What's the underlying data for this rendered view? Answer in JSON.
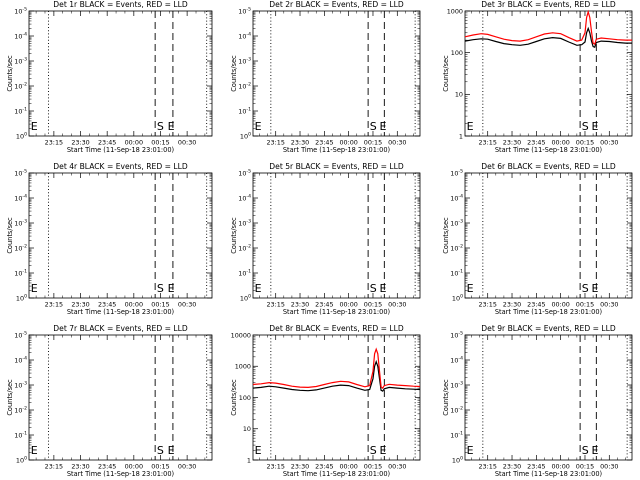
{
  "figure": {
    "background": "#ffffff",
    "axis_color": "#000000",
    "events_color": "#000000",
    "lld_color": "#ff0000"
  },
  "chart_data": [
    {
      "type": "line",
      "panel": 1,
      "title": "Det 1r BLACK = Events, RED = LLD",
      "xlabel": "Start Time (11-Sep-18 23:01:00)",
      "ylabel": "Counts/sec",
      "y_scale": "log",
      "ylim": [
        1,
        100000
      ],
      "xlim": [
        "23:01",
        "00:44"
      ],
      "x_ticks": [
        "23:15",
        "23:30",
        "23:45",
        "00:00",
        "00:15",
        "00:30"
      ],
      "y_tick_labels": [
        "10^0",
        "10^-1",
        "10^-2",
        "10^-3",
        "10^-4",
        "10^-5"
      ],
      "vlines_dotted": [
        "23:12",
        "00:41"
      ],
      "vlines_dashed": [
        "00:12",
        "00:22"
      ],
      "markers": [
        {
          "text": "E",
          "x": "23:02"
        },
        {
          "text": "S",
          "x": "00:13"
        },
        {
          "text": "E",
          "x": "00:19"
        }
      ],
      "series": []
    },
    {
      "type": "line",
      "panel": 2,
      "title": "Det 2r BLACK = Events, RED = LLD",
      "xlabel": "Start Time (11-Sep-18 23:01:00)",
      "ylabel": "Counts/sec",
      "y_scale": "log",
      "ylim": [
        1,
        100000
      ],
      "xlim": [
        "23:01",
        "00:44"
      ],
      "x_ticks": [
        "23:15",
        "23:30",
        "23:45",
        "00:00",
        "00:15",
        "00:30"
      ],
      "y_tick_labels": [
        "10^0",
        "10^-1",
        "10^-2",
        "10^-3",
        "10^-4",
        "10^-5"
      ],
      "vlines_dotted": [
        "23:12",
        "00:41"
      ],
      "vlines_dashed": [
        "00:12",
        "00:22"
      ],
      "markers": [
        {
          "text": "E",
          "x": "23:02"
        },
        {
          "text": "S",
          "x": "00:13"
        },
        {
          "text": "E",
          "x": "00:19"
        }
      ],
      "series": []
    },
    {
      "type": "line",
      "panel": 3,
      "title": "Det 3r BLACK = Events, RED = LLD",
      "xlabel": "Start Time (11-Sep-18 23:01:00)",
      "ylabel": "Counts/sec",
      "y_scale": "log",
      "ylim": [
        1,
        1000
      ],
      "xlim": [
        "23:01",
        "00:44"
      ],
      "x_ticks": [
        "23:15",
        "23:30",
        "23:45",
        "00:00",
        "00:15",
        "00:30"
      ],
      "y_tick_labels": [
        "1",
        "10",
        "100",
        "1000"
      ],
      "vlines_dotted": [
        "23:12",
        "00:41"
      ],
      "vlines_dashed": [
        "00:12",
        "00:22"
      ],
      "markers": [
        {
          "text": "E",
          "x": "23:02"
        },
        {
          "text": "S",
          "x": "00:13"
        },
        {
          "text": "E",
          "x": "00:19"
        }
      ],
      "series": [
        {
          "name": "Events",
          "x": [
            "23:01",
            "23:06",
            "23:11",
            "23:15",
            "23:20",
            "23:25",
            "23:30",
            "23:35",
            "23:40",
            "23:45",
            "23:50",
            "23:55",
            "00:00",
            "00:05",
            "00:10",
            "00:13",
            "00:15",
            "00:16",
            "00:17",
            "00:18",
            "00:19",
            "00:20",
            "00:21",
            "00:22",
            "00:25",
            "00:30",
            "00:35",
            "00:40",
            "00:44"
          ],
          "y": [
            190,
            205,
            215,
            210,
            185,
            165,
            155,
            150,
            160,
            185,
            215,
            230,
            220,
            180,
            150,
            155,
            180,
            300,
            380,
            300,
            190,
            140,
            135,
            175,
            190,
            185,
            175,
            170,
            170
          ]
        },
        {
          "name": "LLD",
          "x": [
            "23:01",
            "23:06",
            "23:11",
            "23:15",
            "23:20",
            "23:25",
            "23:30",
            "23:35",
            "23:40",
            "23:45",
            "23:50",
            "23:55",
            "00:00",
            "00:05",
            "00:10",
            "00:13",
            "00:15",
            "00:16",
            "00:17",
            "00:18",
            "00:19",
            "00:20",
            "00:21",
            "00:22",
            "00:25",
            "00:30",
            "00:35",
            "00:40",
            "00:44"
          ],
          "y": [
            240,
            265,
            285,
            275,
            240,
            210,
            195,
            190,
            205,
            240,
            280,
            300,
            285,
            230,
            190,
            200,
            300,
            700,
            950,
            700,
            320,
            170,
            160,
            210,
            225,
            215,
            205,
            200,
            200
          ]
        }
      ]
    },
    {
      "type": "line",
      "panel": 4,
      "title": "Det 4r BLACK = Events, RED = LLD",
      "xlabel": "Start Time (11-Sep-18 23:01:00)",
      "ylabel": "Counts/sec",
      "y_scale": "log",
      "ylim": [
        1,
        100000
      ],
      "xlim": [
        "23:01",
        "00:44"
      ],
      "x_ticks": [
        "23:15",
        "23:30",
        "23:45",
        "00:00",
        "00:15",
        "00:30"
      ],
      "y_tick_labels": [
        "10^0",
        "10^-1",
        "10^-2",
        "10^-3",
        "10^-4",
        "10^-5"
      ],
      "vlines_dotted": [
        "23:12",
        "00:41"
      ],
      "vlines_dashed": [
        "00:12",
        "00:22"
      ],
      "markers": [
        {
          "text": "E",
          "x": "23:02"
        },
        {
          "text": "S",
          "x": "00:13"
        },
        {
          "text": "E",
          "x": "00:19"
        }
      ],
      "series": []
    },
    {
      "type": "line",
      "panel": 5,
      "title": "Det 5r BLACK = Events, RED = LLD",
      "xlabel": "Start Time (11-Sep-18 23:01:00)",
      "ylabel": "Counts/sec",
      "y_scale": "log",
      "ylim": [
        1,
        100000
      ],
      "xlim": [
        "23:01",
        "00:44"
      ],
      "x_ticks": [
        "23:15",
        "23:30",
        "23:45",
        "00:00",
        "00:15",
        "00:30"
      ],
      "y_tick_labels": [
        "10^0",
        "10^-1",
        "10^-2",
        "10^-3",
        "10^-4",
        "10^-5"
      ],
      "vlines_dotted": [
        "23:12",
        "00:41"
      ],
      "vlines_dashed": [
        "00:12",
        "00:22"
      ],
      "markers": [
        {
          "text": "E",
          "x": "23:02"
        },
        {
          "text": "S",
          "x": "00:13"
        },
        {
          "text": "E",
          "x": "00:19"
        }
      ],
      "series": []
    },
    {
      "type": "line",
      "panel": 6,
      "title": "Det 6r BLACK = Events, RED = LLD",
      "xlabel": "Start Time (11-Sep-18 23:01:00)",
      "ylabel": "Counts/sec",
      "y_scale": "log",
      "ylim": [
        1,
        100000
      ],
      "xlim": [
        "23:01",
        "00:44"
      ],
      "x_ticks": [
        "23:15",
        "23:30",
        "23:45",
        "00:00",
        "00:15",
        "00:30"
      ],
      "y_tick_labels": [
        "10^0",
        "10^-1",
        "10^-2",
        "10^-3",
        "10^-4",
        "10^-5"
      ],
      "vlines_dotted": [
        "23:12",
        "00:41"
      ],
      "vlines_dashed": [
        "00:12",
        "00:22"
      ],
      "markers": [
        {
          "text": "E",
          "x": "23:02"
        },
        {
          "text": "S",
          "x": "00:13"
        },
        {
          "text": "E",
          "x": "00:19"
        }
      ],
      "series": []
    },
    {
      "type": "line",
      "panel": 7,
      "title": "Det 7r BLACK = Events, RED = LLD",
      "xlabel": "Start Time (11-Sep-18 23:01:00)",
      "ylabel": "Counts/sec",
      "y_scale": "log",
      "ylim": [
        1,
        100000
      ],
      "xlim": [
        "23:01",
        "00:44"
      ],
      "x_ticks": [
        "23:15",
        "23:30",
        "23:45",
        "00:00",
        "00:15",
        "00:30"
      ],
      "y_tick_labels": [
        "10^0",
        "10^-1",
        "10^-2",
        "10^-3",
        "10^-4",
        "10^-5"
      ],
      "vlines_dotted": [
        "23:12",
        "00:41"
      ],
      "vlines_dashed": [
        "00:12",
        "00:22"
      ],
      "markers": [
        {
          "text": "E",
          "x": "23:02"
        },
        {
          "text": "S",
          "x": "00:13"
        },
        {
          "text": "E",
          "x": "00:19"
        }
      ],
      "series": []
    },
    {
      "type": "line",
      "panel": 8,
      "title": "Det 8r BLACK = Events, RED = LLD",
      "xlabel": "Start Time (11-Sep-18 23:01:00)",
      "ylabel": "Counts/sec",
      "y_scale": "log",
      "ylim": [
        1,
        10000
      ],
      "xlim": [
        "23:01",
        "00:44"
      ],
      "x_ticks": [
        "23:15",
        "23:30",
        "23:45",
        "00:00",
        "00:15",
        "00:30"
      ],
      "y_tick_labels": [
        "1",
        "10",
        "100",
        "1000",
        "10000"
      ],
      "vlines_dotted": [
        "23:12",
        "00:41"
      ],
      "vlines_dashed": [
        "00:12",
        "00:22"
      ],
      "markers": [
        {
          "text": "E",
          "x": "23:02"
        },
        {
          "text": "S",
          "x": "00:13"
        },
        {
          "text": "E",
          "x": "00:19"
        }
      ],
      "series": [
        {
          "name": "Events",
          "x": [
            "23:01",
            "23:06",
            "23:11",
            "23:15",
            "23:20",
            "23:25",
            "23:30",
            "23:35",
            "23:40",
            "23:45",
            "23:50",
            "23:55",
            "00:00",
            "00:05",
            "00:10",
            "00:13",
            "00:15",
            "00:16",
            "00:17",
            "00:18",
            "00:19",
            "00:20",
            "00:21",
            "00:22",
            "00:25",
            "00:30",
            "00:35",
            "00:40",
            "00:44"
          ],
          "y": [
            200,
            210,
            230,
            220,
            200,
            180,
            170,
            165,
            175,
            200,
            230,
            250,
            240,
            200,
            170,
            180,
            400,
            1000,
            1400,
            1000,
            400,
            170,
            160,
            190,
            210,
            200,
            190,
            185,
            180
          ]
        },
        {
          "name": "LLD",
          "x": [
            "23:01",
            "23:06",
            "23:11",
            "23:15",
            "23:20",
            "23:25",
            "23:30",
            "23:35",
            "23:40",
            "23:45",
            "23:50",
            "23:55",
            "00:00",
            "00:05",
            "00:10",
            "00:13",
            "00:15",
            "00:16",
            "00:17",
            "00:18",
            "00:19",
            "00:20",
            "00:21",
            "00:22",
            "00:25",
            "00:30",
            "00:35",
            "00:40",
            "00:44"
          ],
          "y": [
            260,
            275,
            300,
            290,
            260,
            230,
            215,
            210,
            225,
            260,
            300,
            330,
            315,
            260,
            220,
            240,
            700,
            2500,
            3500,
            2500,
            700,
            220,
            200,
            240,
            265,
            250,
            240,
            230,
            225
          ]
        }
      ]
    },
    {
      "type": "line",
      "panel": 9,
      "title": "Det 9r BLACK = Events, RED = LLD",
      "xlabel": "Start Time (11-Sep-18 23:01:00)",
      "ylabel": "Counts/sec",
      "y_scale": "log",
      "ylim": [
        1,
        100000
      ],
      "xlim": [
        "23:01",
        "00:44"
      ],
      "x_ticks": [
        "23:15",
        "23:30",
        "23:45",
        "00:00",
        "00:15",
        "00:30"
      ],
      "y_tick_labels": [
        "10^0",
        "10^-1",
        "10^-2",
        "10^-3",
        "10^-4",
        "10^-5"
      ],
      "vlines_dotted": [
        "23:12",
        "00:41"
      ],
      "vlines_dashed": [
        "00:12",
        "00:22"
      ],
      "markers": [
        {
          "text": "E",
          "x": "23:02"
        },
        {
          "text": "S",
          "x": "00:13"
        },
        {
          "text": "E",
          "x": "00:19"
        }
      ],
      "series": []
    }
  ]
}
